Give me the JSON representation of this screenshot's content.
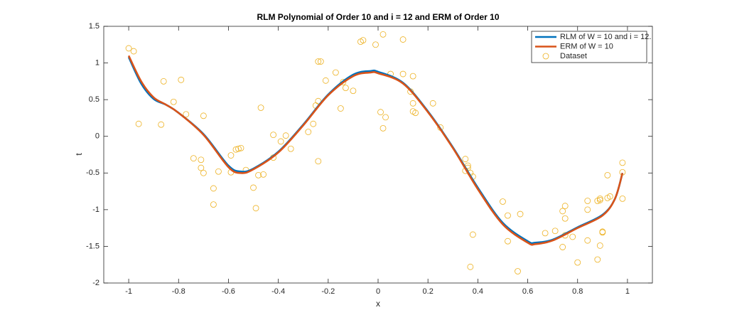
{
  "chart_data": {
    "type": "line",
    "title": "RLM Polynomial of Order 10 and i = 12 and ERM of Order 10",
    "xlabel": "x",
    "ylabel": "t",
    "xlim": [
      -1.1,
      1.1
    ],
    "ylim": [
      -2,
      1.5
    ],
    "xticks": [
      -1,
      -0.8,
      -0.6,
      -0.4,
      -0.2,
      0,
      0.2,
      0.4,
      0.6,
      0.8,
      1
    ],
    "yticks": [
      -2,
      -1.5,
      -1,
      -0.5,
      0,
      0.5,
      1,
      1.5
    ],
    "legend": "northeast",
    "x": [
      -1,
      -0.95,
      -0.9,
      -0.85,
      -0.8,
      -0.7,
      -0.6,
      -0.55,
      -0.5,
      -0.4,
      -0.3,
      -0.2,
      -0.1,
      -0.03,
      0,
      0.1,
      0.2,
      0.3,
      0.4,
      0.5,
      0.6,
      0.63,
      0.7,
      0.8,
      0.9,
      0.95,
      0.98
    ],
    "series": [
      {
        "name": "RLM of W = 10 and i = 12.",
        "color": "#0072bd",
        "type": "line",
        "values": [
          1.08,
          0.72,
          0.51,
          0.43,
          0.32,
          0.03,
          -0.4,
          -0.48,
          -0.44,
          -0.21,
          0.16,
          0.57,
          0.84,
          0.89,
          0.88,
          0.73,
          0.34,
          -0.15,
          -0.7,
          -1.18,
          -1.43,
          -1.45,
          -1.41,
          -1.24,
          -1.07,
          -0.85,
          -0.5
        ]
      },
      {
        "name": "ERM of W = 10",
        "color": "#d95319",
        "type": "line",
        "values": [
          1.1,
          0.75,
          0.53,
          0.43,
          0.32,
          0.02,
          -0.42,
          -0.5,
          -0.45,
          -0.22,
          0.15,
          0.56,
          0.82,
          0.87,
          0.86,
          0.72,
          0.33,
          -0.16,
          -0.72,
          -1.2,
          -1.45,
          -1.47,
          -1.42,
          -1.25,
          -1.08,
          -0.85,
          -0.5
        ]
      },
      {
        "name": "Dataset",
        "color": "#edb120",
        "type": "scatter",
        "x": [
          -1,
          -0.98,
          -0.96,
          -0.87,
          -0.86,
          -0.82,
          -0.79,
          -0.77,
          -0.74,
          -0.71,
          -0.71,
          -0.7,
          -0.7,
          -0.66,
          -0.66,
          -0.64,
          -0.59,
          -0.59,
          -0.57,
          -0.56,
          -0.55,
          -0.53,
          -0.5,
          -0.49,
          -0.48,
          -0.47,
          -0.46,
          -0.42,
          -0.42,
          -0.39,
          -0.37,
          -0.35,
          -0.28,
          -0.26,
          -0.25,
          -0.24,
          -0.24,
          -0.23,
          -0.24,
          -0.21,
          -0.17,
          -0.15,
          -0.14,
          -0.13,
          -0.1,
          -0.07,
          -0.06,
          -0.01,
          0.01,
          0.02,
          0.02,
          0.03,
          0.05,
          0.1,
          0.1,
          0.13,
          0.14,
          0.14,
          0.14,
          0.15,
          0.22,
          0.25,
          0.35,
          0.35,
          0.36,
          0.37,
          0.36,
          0.38,
          0.38,
          0.37,
          0.5,
          0.52,
          0.52,
          0.57,
          0.56,
          0.67,
          0.71,
          0.74,
          0.75,
          0.75,
          0.75,
          0.74,
          0.78,
          0.8,
          0.84,
          0.84,
          0.84,
          0.88,
          0.89,
          0.89,
          0.89,
          0.88,
          0.9,
          0.9,
          0.92,
          0.93,
          0.92,
          0.98,
          0.98,
          0.98
        ],
        "values": [
          1.2,
          1.16,
          0.17,
          0.16,
          0.75,
          0.47,
          0.77,
          0.3,
          -0.3,
          -0.43,
          -0.32,
          0.28,
          -0.5,
          -0.71,
          -0.93,
          -0.48,
          -0.49,
          -0.26,
          -0.18,
          -0.17,
          -0.16,
          -0.46,
          -0.7,
          -0.98,
          -0.53,
          0.39,
          -0.52,
          0.02,
          -0.29,
          -0.07,
          0.01,
          -0.17,
          0.06,
          0.17,
          0.42,
          0.48,
          1.02,
          1.02,
          -0.34,
          0.76,
          0.87,
          0.38,
          0.74,
          0.66,
          0.62,
          1.29,
          1.31,
          1.25,
          0.33,
          1.39,
          0.11,
          0.26,
          0.85,
          0.85,
          1.32,
          0.61,
          0.82,
          0.45,
          0.34,
          0.32,
          0.45,
          0.12,
          -0.47,
          -0.31,
          -0.4,
          -0.5,
          -0.43,
          -0.55,
          -1.34,
          -1.78,
          -0.89,
          -1.08,
          -1.43,
          -1.06,
          -1.84,
          -1.32,
          -1.29,
          -1.02,
          -0.95,
          -1.12,
          -1.35,
          -1.51,
          -1.37,
          -1.72,
          -0.88,
          -1.0,
          -1.42,
          -0.88,
          -0.85,
          -0.87,
          -1.49,
          -1.68,
          -1.31,
          -1.3,
          -0.84,
          -0.82,
          -0.53,
          -0.36,
          -0.49,
          -0.85
        ]
      }
    ]
  }
}
